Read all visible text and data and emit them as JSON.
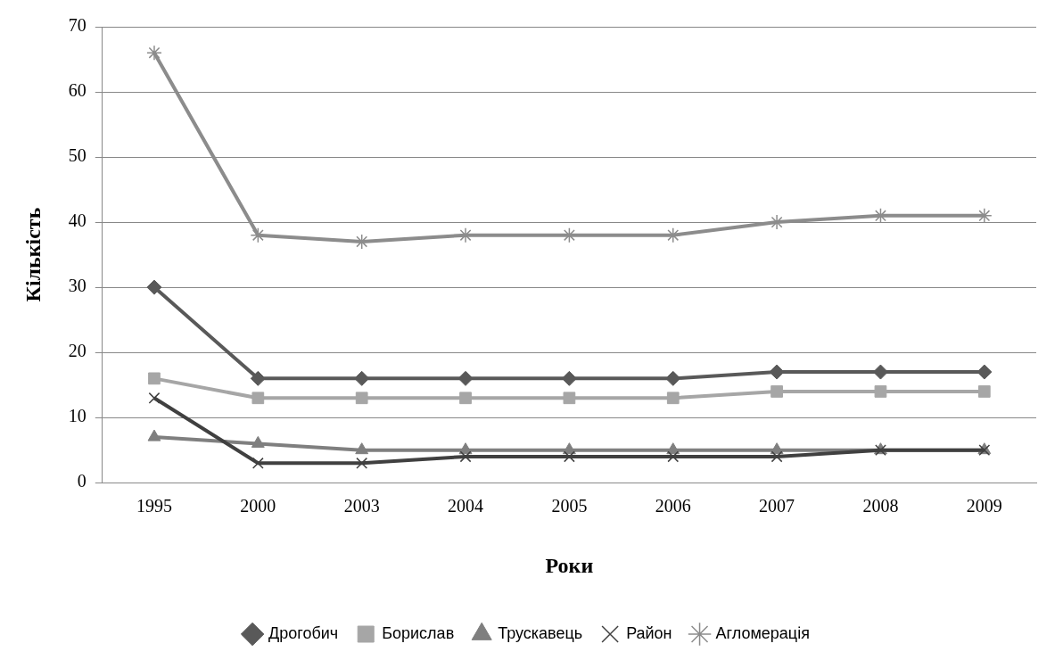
{
  "chart_data": {
    "type": "line",
    "xlabel": "Роки",
    "ylabel": "Кількість",
    "categories": [
      "1995",
      "2000",
      "2003",
      "2004",
      "2005",
      "2006",
      "2007",
      "2008",
      "2009"
    ],
    "series": [
      {
        "name": "Дрогобич",
        "color": "#595959",
        "marker": "diamond",
        "values": [
          30,
          16,
          16,
          16,
          16,
          16,
          17,
          17,
          17
        ]
      },
      {
        "name": "Борислав",
        "color": "#a6a6a6",
        "marker": "square",
        "values": [
          16,
          13,
          13,
          13,
          13,
          13,
          14,
          14,
          14
        ]
      },
      {
        "name": "Трускавець",
        "color": "#7f7f7f",
        "marker": "triangle",
        "values": [
          7,
          6,
          5,
          5,
          5,
          5,
          5,
          5,
          5
        ]
      },
      {
        "name": "Район",
        "color": "#404040",
        "marker": "cross",
        "values": [
          13,
          3,
          3,
          4,
          4,
          4,
          4,
          5,
          5
        ]
      },
      {
        "name": "Агломерація",
        "color": "#8c8c8c",
        "marker": "cross",
        "values": [
          66,
          38,
          37,
          38,
          38,
          38,
          40,
          41,
          41
        ]
      }
    ],
    "ylim": [
      0,
      70
    ],
    "yticks": [
      0,
      10,
      20,
      30,
      40,
      50,
      60,
      70
    ],
    "grid": "y",
    "legend": "bottom"
  }
}
